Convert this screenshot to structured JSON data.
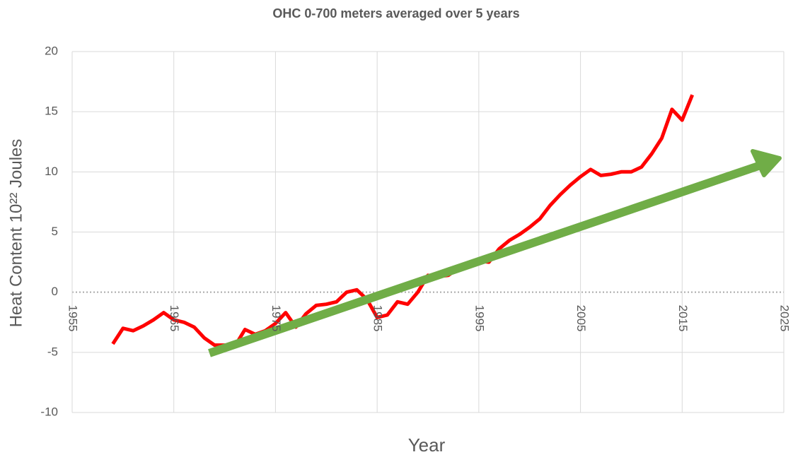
{
  "chart_data": {
    "type": "line",
    "title": "OHC 0-700 meters averaged over 5 years",
    "xlabel": "Year",
    "ylabel": "Heat Content 10²² Joules",
    "x": [
      1959,
      1960,
      1961,
      1962,
      1963,
      1964,
      1965,
      1966,
      1967,
      1968,
      1969,
      1970,
      1971,
      1972,
      1973,
      1974,
      1975,
      1976,
      1977,
      1978,
      1979,
      1980,
      1981,
      1982,
      1983,
      1984,
      1985,
      1986,
      1987,
      1988,
      1989,
      1990,
      1991,
      1992,
      1993,
      1994,
      1995,
      1996,
      1997,
      1998,
      1999,
      2000,
      2001,
      2002,
      2003,
      2004,
      2005,
      2006,
      2007,
      2008,
      2009,
      2010,
      2011,
      2012,
      2013,
      2014,
      2015,
      2016,
      2017
    ],
    "series": [
      {
        "name": "OHC",
        "color": "#ff0000",
        "values": [
          -4.3,
          -3.0,
          -3.2,
          -2.8,
          -2.3,
          -1.7,
          -2.3,
          -2.5,
          -2.9,
          -3.8,
          -4.4,
          -4.4,
          -4.5,
          -3.1,
          -3.5,
          -3.2,
          -2.6,
          -1.7,
          -2.9,
          -1.8,
          -1.1,
          -1.0,
          -0.8,
          0.0,
          0.2,
          -0.6,
          -2.1,
          -1.9,
          -0.8,
          -1.0,
          0.0,
          1.4,
          1.3,
          1.4,
          2.0,
          2.3,
          2.6,
          2.5,
          3.6,
          4.3,
          4.8,
          5.4,
          6.1,
          7.2,
          8.1,
          8.9,
          9.6,
          10.2,
          9.7,
          9.8,
          10.0,
          10.0,
          10.4,
          11.5,
          12.8,
          15.2,
          14.3,
          16.4,
          null
        ]
      }
    ],
    "xlim": [
      1955,
      2025
    ],
    "xticks": [
      1955,
      1965,
      1975,
      1985,
      1995,
      2005,
      2015,
      2025
    ],
    "ylim": [
      -10,
      20
    ],
    "yticks": [
      -10,
      -5,
      0,
      5,
      10,
      15,
      20
    ],
    "grid": true
  }
}
